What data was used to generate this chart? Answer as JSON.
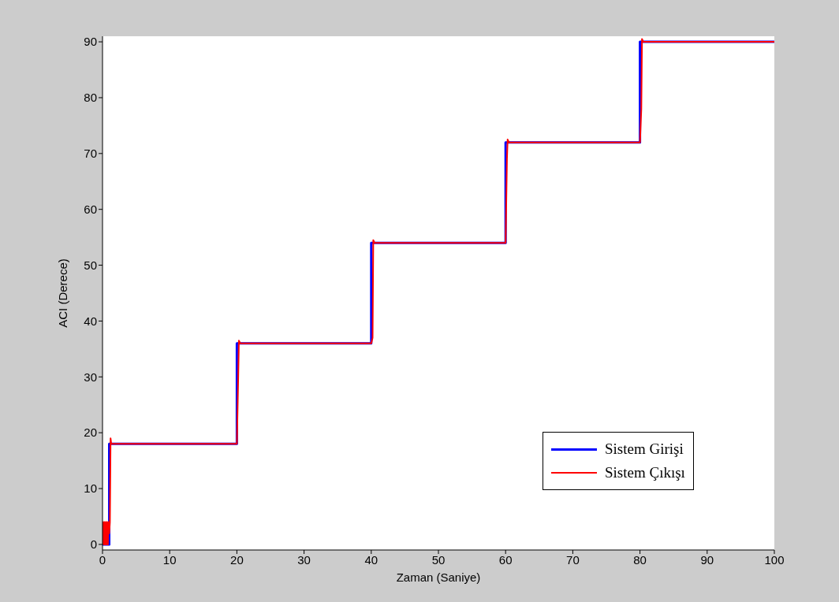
{
  "chart_data": {
    "type": "line",
    "xlabel": "Zaman (Saniye)",
    "ylabel": "ACI (Derece)",
    "xlim": [
      0,
      100
    ],
    "xticks": [
      0,
      10,
      20,
      30,
      40,
      50,
      60,
      70,
      80,
      90,
      100
    ],
    "ylim": [
      -1,
      91
    ],
    "yticks": [
      0,
      10,
      20,
      30,
      40,
      50,
      60,
      70,
      80,
      90
    ],
    "grid": false,
    "legend": "bottom right",
    "marker": "none",
    "series": [
      {
        "name": "Sistem Girişi",
        "color": "#0000ff",
        "x": [
          0,
          1,
          1,
          20,
          20,
          40,
          40,
          60,
          60,
          80,
          80,
          100
        ],
        "values": [
          0,
          0,
          18,
          18,
          36,
          36,
          54,
          54,
          72,
          72,
          90,
          90
        ]
      },
      {
        "name": "Sistem Çıkışı",
        "color": "#ff0000",
        "x": [
          0,
          0.1,
          0.2,
          0.3,
          0.4,
          0.5,
          0.6,
          0.7,
          0.8,
          0.9,
          1.0,
          1.1,
          1.2,
          1.3,
          20,
          20.2,
          20.3,
          20.5,
          40,
          40.2,
          40.3,
          40.5,
          60,
          60.2,
          60.3,
          60.5,
          80,
          80.2,
          80.3,
          80.5,
          100
        ],
        "values": [
          0,
          4,
          0,
          4,
          0,
          4,
          0,
          4,
          0,
          4,
          2,
          4,
          19,
          18,
          18,
          30,
          36.5,
          36,
          36,
          37,
          54.5,
          54,
          54,
          69,
          72.5,
          72,
          72,
          78,
          90.5,
          90,
          90
        ]
      }
    ]
  }
}
